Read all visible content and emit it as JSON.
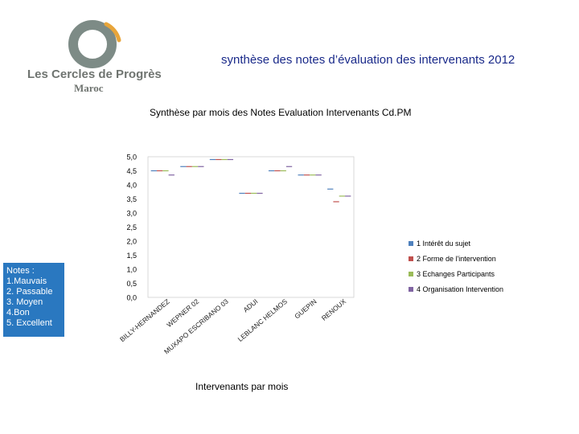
{
  "logo": {
    "name": "Les Cercles de Progrès",
    "sub": "Maroc",
    "colors": {
      "ring": "#7d8b86",
      "accent": "#e8a53a"
    }
  },
  "page_title": "synthèse des notes d’évaluation des intervenants 2012",
  "notes": {
    "heading": "Notes :",
    "items": [
      " 1.Mauvais",
      "2. Passable",
      "3. Moyen",
      "4.Bon",
      "5. Excellent"
    ]
  },
  "chart_data": {
    "type": "bar",
    "title": "Synthèse par mois des Notes Evaluation Intervenants Cd.PM",
    "xlabel": "Intervenants par mois",
    "ylabel": "",
    "ylim": [
      0,
      5
    ],
    "yticks": [
      "0,0",
      "0,5",
      "1,0",
      "1,5",
      "2,0",
      "2,5",
      "3,0",
      "3,5",
      "4,0",
      "4,5",
      "5,0"
    ],
    "grid": false,
    "legend_position": "right",
    "categories": [
      "BILLY-HERNANDEZ",
      "WEPNER 02",
      "MUXAPO ESCRIBANO 03",
      "ADUI",
      "LEBLANC HELMOS",
      "GUEPIN",
      "RENOUX"
    ],
    "series": [
      {
        "name": "1 Intérêt du sujet",
        "color": "#4f81bd",
        "values": [
          4.5,
          4.65,
          4.9,
          3.7,
          4.5,
          4.35,
          3.85
        ]
      },
      {
        "name": "2 Forme de l'intervention",
        "color": "#c0504d",
        "values": [
          4.5,
          4.65,
          4.9,
          3.7,
          4.5,
          4.35,
          3.4
        ]
      },
      {
        "name": "3 Echanges Participants",
        "color": "#9bbb59",
        "values": [
          4.5,
          4.65,
          4.9,
          3.7,
          4.5,
          4.35,
          3.6
        ]
      },
      {
        "name": "4 Organisation Intervention",
        "color": "#8064a2",
        "values": [
          4.35,
          4.65,
          4.9,
          3.7,
          4.65,
          4.35,
          3.6
        ]
      }
    ]
  }
}
